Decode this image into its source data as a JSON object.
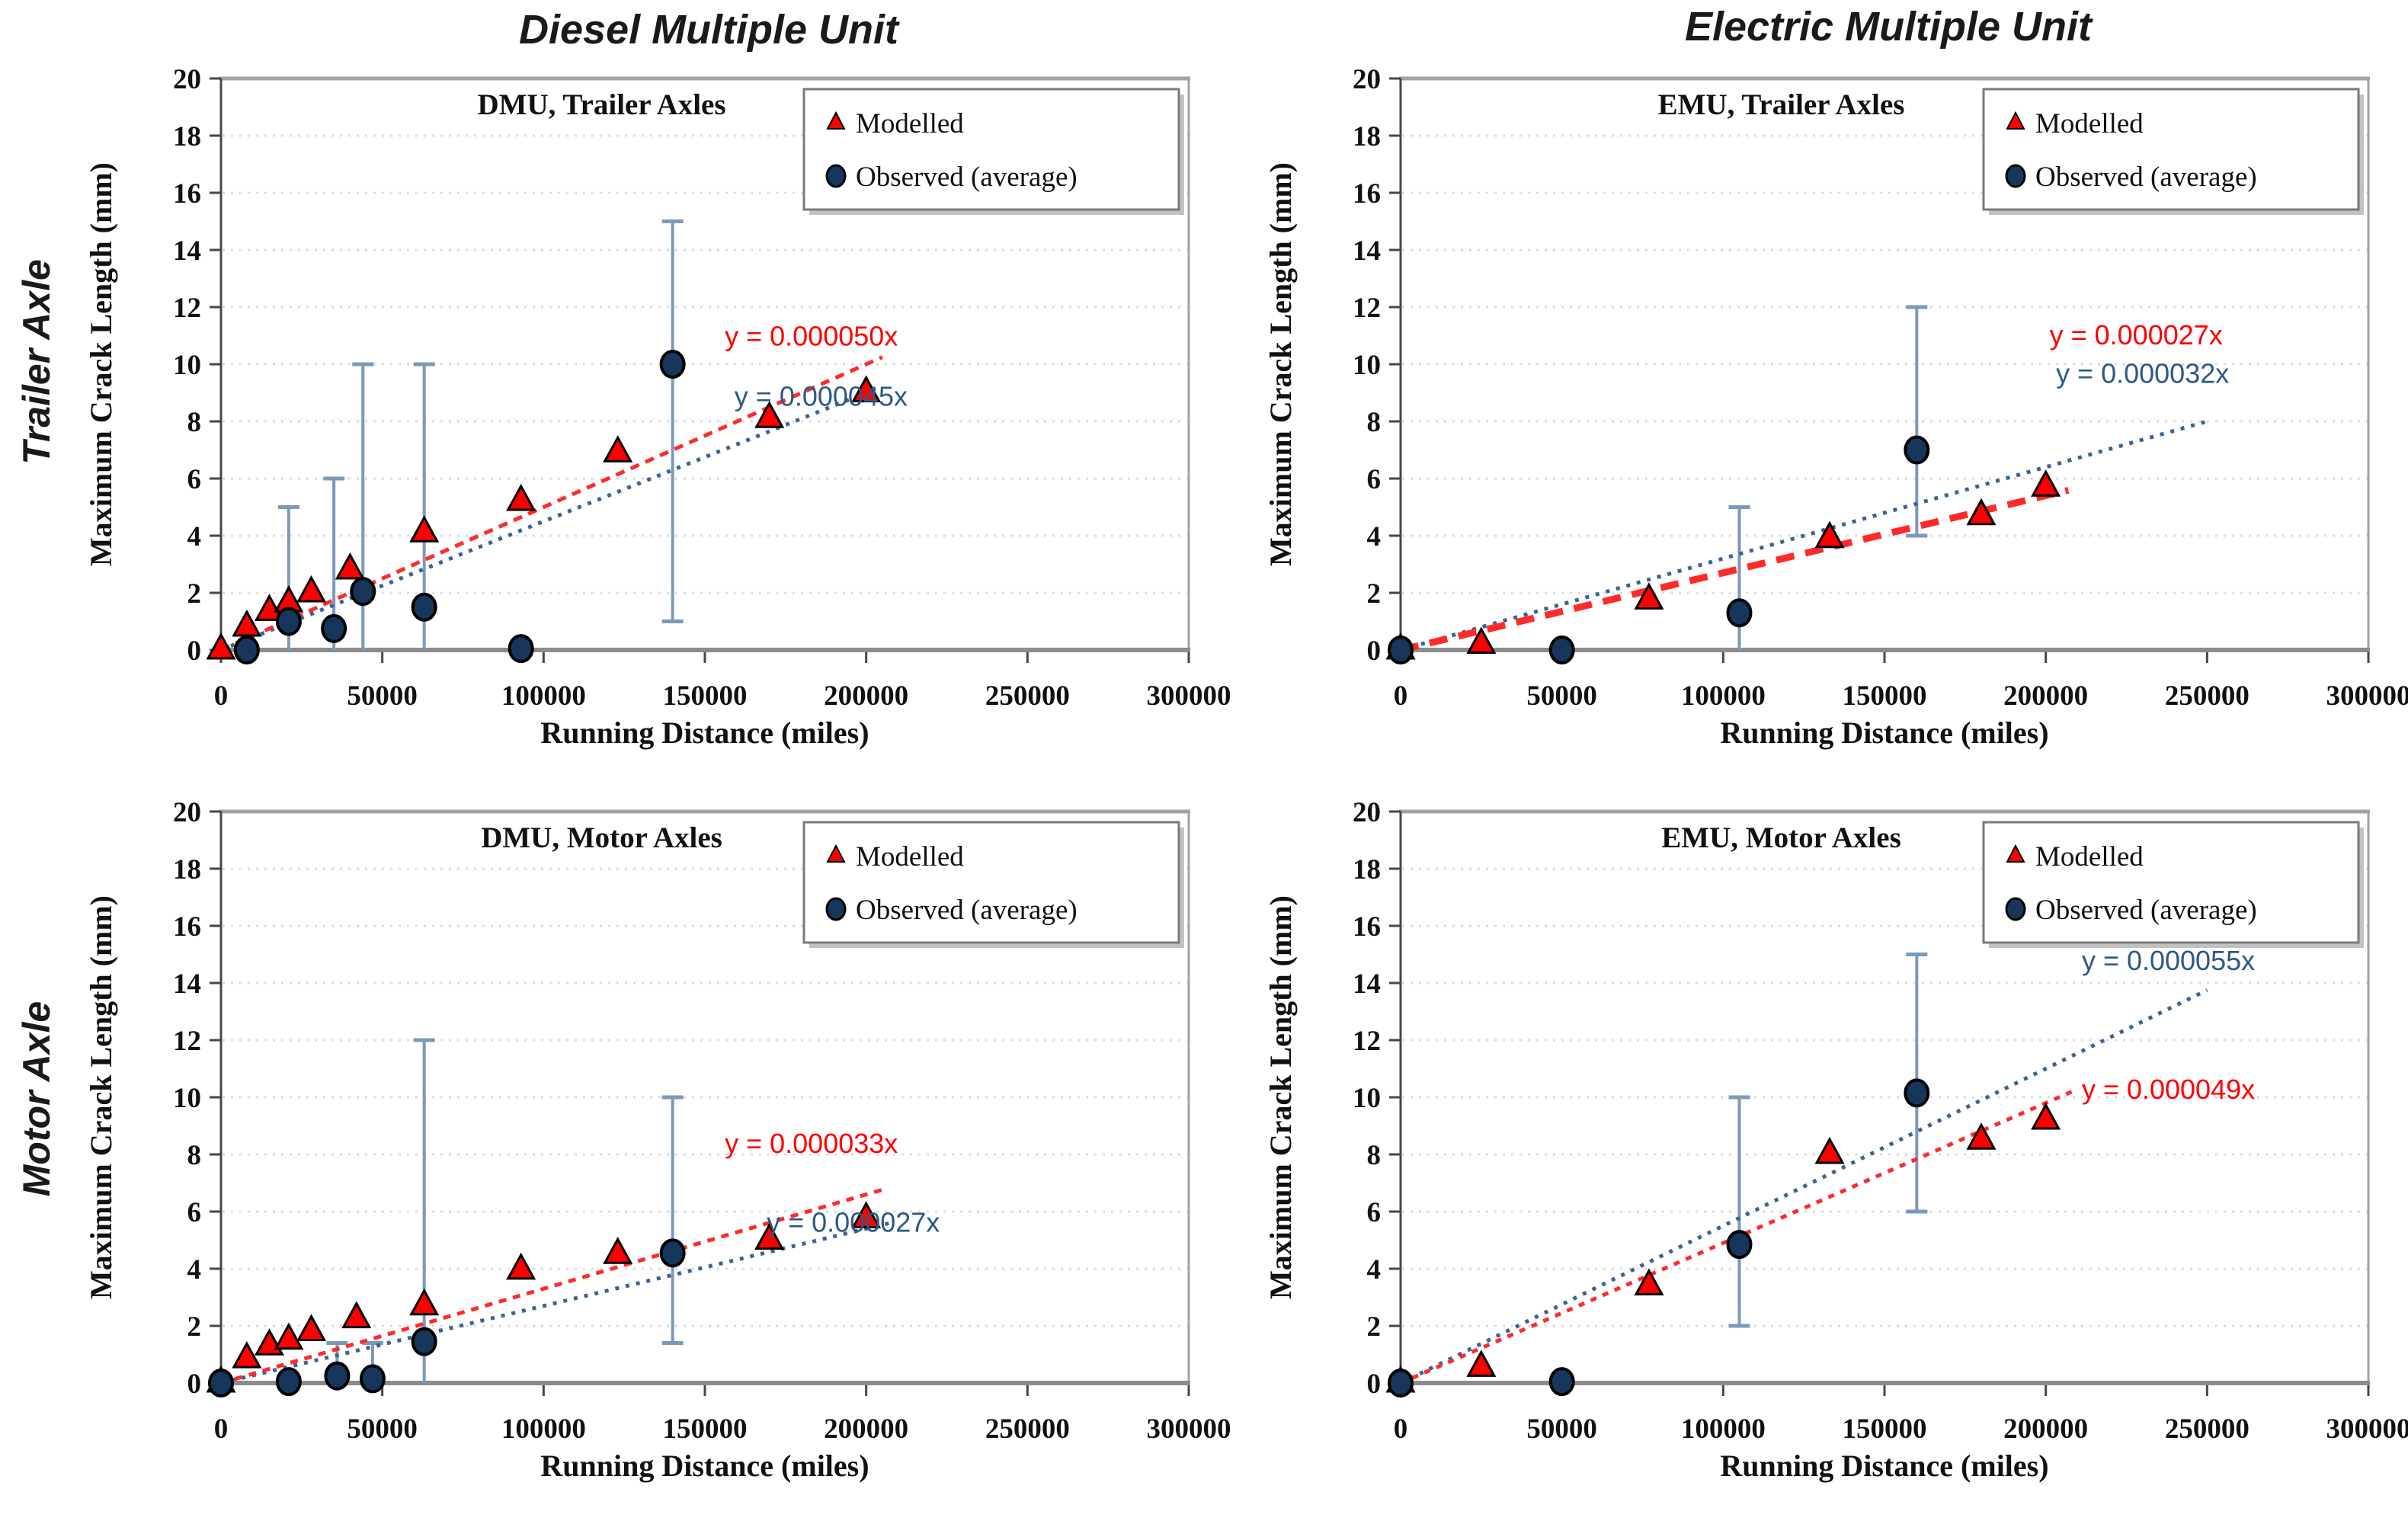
{
  "page": {
    "column_titles": [
      "Diesel Multiple Unit",
      "Electric Multiple Unit"
    ],
    "row_labels": [
      "Trailer Axle",
      "Motor Axle"
    ]
  },
  "axes": {
    "x_label": "Running Distance (miles)",
    "y_label": "Maximum Crack Length (mm)",
    "x_max": 300000,
    "y_max": 20,
    "x_ticks": [
      0,
      50000,
      100000,
      150000,
      200000,
      250000,
      300000
    ],
    "x_tick_labels": [
      "0",
      "50000",
      "100000",
      "150000",
      "200000",
      "250000",
      "300000"
    ],
    "y_ticks": [
      0,
      2,
      4,
      6,
      8,
      10,
      12,
      14,
      16,
      18,
      20
    ],
    "y_tick_labels": [
      "0",
      "2",
      "4",
      "6",
      "8",
      "10",
      "12",
      "14",
      "16",
      "18",
      "20"
    ],
    "grid": "horizontal-dotted",
    "legend_position": "top-right-inside"
  },
  "legend": {
    "modelled": "Modelled",
    "observed": "Observed (average)"
  },
  "colors": {
    "modelled_marker": "#FF0000",
    "observed_marker": "#16365C",
    "marker_outline": "#000000",
    "error_bar": "#7C9AB8",
    "red_line": "#FF2A2A",
    "blue_line": "#3A6494",
    "red_text": "#FF0000",
    "blue_text": "#2E5984",
    "grid_line": "#DCDCDC",
    "axis_line": "#8C8C8C",
    "border": "#A3A3A3"
  },
  "chart_data": [
    {
      "type": "scatter",
      "position": "top-left",
      "title": "DMU, Trailer Axles",
      "xlabel": "Running Distance (miles)",
      "ylabel": "Maximum Crack Length (mm)",
      "xlim": [
        0,
        300000
      ],
      "ylim": [
        0,
        20
      ],
      "series": [
        {
          "name": "Modelled",
          "marker": "triangle",
          "points": [
            [
              0,
              0
            ],
            [
              8000,
              0.8
            ],
            [
              15000,
              1.35
            ],
            [
              21000,
              1.65
            ],
            [
              28000,
              2.0
            ],
            [
              40000,
              2.8
            ],
            [
              63000,
              4.1
            ],
            [
              93000,
              5.2
            ],
            [
              123000,
              6.9
            ],
            [
              170000,
              8.1
            ],
            [
              200000,
              9.0
            ]
          ]
        },
        {
          "name": "Observed (average)",
          "marker": "circle",
          "points": [
            [
              8000,
              0
            ],
            [
              21000,
              1.0,
              0,
              5
            ],
            [
              35000,
              0.75,
              0,
              6
            ],
            [
              44000,
              2.05,
              0,
              10
            ],
            [
              63000,
              1.5,
              0,
              10
            ],
            [
              93000,
              0.05
            ],
            [
              140000,
              10,
              1,
              15
            ]
          ]
        }
      ],
      "trendlines": [
        {
          "palette": "blue",
          "label": "y = 0.000045x",
          "slope": 4.5e-05,
          "x_end": 203000,
          "label_pos": [
            186000,
            8.55
          ],
          "width": 5,
          "dash": "5 9"
        },
        {
          "palette": "red",
          "label": "y = 0.000050x",
          "slope": 5e-05,
          "x_end": 205000,
          "label_pos": [
            183000,
            10.65
          ],
          "width": 5,
          "dash": "12 9"
        }
      ]
    },
    {
      "type": "scatter",
      "position": "top-right",
      "title": "EMU, Trailer  Axles",
      "xlabel": "Running Distance (miles)",
      "ylabel": "Maximum Crack Length (mm)",
      "xlim": [
        0,
        300000
      ],
      "ylim": [
        0,
        20
      ],
      "series": [
        {
          "name": "Modelled",
          "marker": "triangle",
          "points": [
            [
              0,
              0
            ],
            [
              25000,
              0.2
            ],
            [
              77000,
              1.75
            ],
            [
              133000,
              3.9
            ],
            [
              180000,
              4.7
            ],
            [
              200000,
              5.7
            ]
          ]
        },
        {
          "name": "Observed (average)",
          "marker": "circle",
          "points": [
            [
              0,
              0
            ],
            [
              50000,
              0
            ],
            [
              105000,
              1.3,
              0,
              5
            ],
            [
              160000,
              7,
              4,
              12
            ]
          ]
        }
      ],
      "trendlines": [
        {
          "palette": "blue",
          "label": "y = 0.000032x",
          "slope": 3.2e-05,
          "x_end": 250000,
          "label_pos": [
            230000,
            9.35
          ],
          "width": 5,
          "dash": "5 9"
        },
        {
          "palette": "red",
          "label": "y = 0.000027x",
          "slope": 2.7e-05,
          "x_end": 207000,
          "label_pos": [
            228000,
            10.7
          ],
          "width": 9,
          "dash": "24 15"
        }
      ]
    },
    {
      "type": "scatter",
      "position": "bottom-left",
      "title": "DMU, Motor Axles",
      "xlabel": "Running Distance (miles)",
      "ylabel": "Maximum Crack Length (mm)",
      "xlim": [
        0,
        300000
      ],
      "ylim": [
        0,
        20
      ],
      "series": [
        {
          "name": "Modelled",
          "marker": "triangle",
          "points": [
            [
              0,
              0
            ],
            [
              8000,
              0.85
            ],
            [
              15000,
              1.3
            ],
            [
              21000,
              1.5
            ],
            [
              28000,
              1.8
            ],
            [
              42000,
              2.25
            ],
            [
              63000,
              2.7
            ],
            [
              93000,
              3.95
            ],
            [
              123000,
              4.5
            ],
            [
              170000,
              5.0
            ],
            [
              200000,
              5.75
            ]
          ]
        },
        {
          "name": "Observed (average)",
          "marker": "circle",
          "points": [
            [
              0,
              0
            ],
            [
              21000,
              0.05
            ],
            [
              36000,
              0.25,
              0,
              1.4
            ],
            [
              47000,
              0.15,
              0,
              1.4
            ],
            [
              63000,
              1.45,
              0,
              12
            ],
            [
              140000,
              4.55,
              1.4,
              10
            ]
          ]
        }
      ],
      "trendlines": [
        {
          "palette": "blue",
          "label": "y = 0.000027x",
          "slope": 2.7e-05,
          "x_end": 207000,
          "label_pos": [
            196000,
            5.3
          ],
          "width": 5,
          "dash": "5 9"
        },
        {
          "palette": "red",
          "label": "y = 0.000033x",
          "slope": 3.3e-05,
          "x_end": 205000,
          "label_pos": [
            183000,
            8.05
          ],
          "width": 5,
          "dash": "10 9"
        }
      ]
    },
    {
      "type": "scatter",
      "position": "bottom-right",
      "title": "EMU, Motor Axles",
      "xlabel": "Running Distance (miles)",
      "ylabel": "Maximum Crack Length (mm)",
      "xlim": [
        0,
        300000
      ],
      "ylim": [
        0,
        20
      ],
      "series": [
        {
          "name": "Modelled",
          "marker": "triangle",
          "points": [
            [
              0,
              0
            ],
            [
              25000,
              0.55
            ],
            [
              77000,
              3.4
            ],
            [
              133000,
              8.0
            ],
            [
              180000,
              8.5
            ],
            [
              200000,
              9.2
            ]
          ]
        },
        {
          "name": "Observed (average)",
          "marker": "circle",
          "points": [
            [
              0,
              0
            ],
            [
              50000,
              0.05
            ],
            [
              105000,
              4.85,
              2,
              10
            ],
            [
              160000,
              10.15,
              6,
              15
            ]
          ]
        }
      ],
      "trendlines": [
        {
          "palette": "blue",
          "label": "y = 0.000055x",
          "slope": 5.5e-05,
          "x_end": 250000,
          "label_pos": [
            238000,
            14.45
          ],
          "width": 5,
          "dash": "5 9"
        },
        {
          "palette": "red",
          "label": "y = 0.000049x",
          "slope": 4.9e-05,
          "x_end": 210000,
          "label_pos": [
            238000,
            9.95
          ],
          "width": 5,
          "dash": "8 9"
        }
      ]
    }
  ]
}
